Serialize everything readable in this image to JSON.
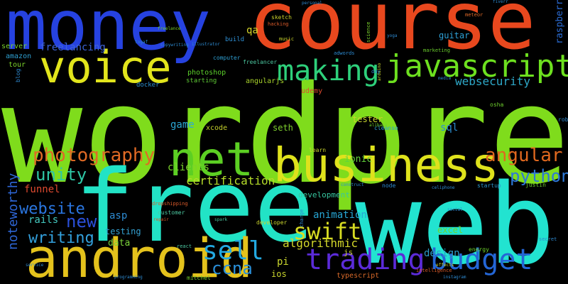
{
  "words": [
    {
      "text": "wordpress",
      "color": "#7fdc1c"
    },
    {
      "text": "web",
      "color": "#22e3d0"
    },
    {
      "text": "free",
      "color": "#22e3c6"
    },
    {
      "text": "money",
      "color": "#2642e0"
    },
    {
      "text": "course",
      "color": "#e8481e"
    },
    {
      "text": "android",
      "color": "#e4c21c"
    },
    {
      "text": "business",
      "color": "#dfe21c"
    },
    {
      "text": "voice",
      "color": "#e2e51c"
    },
    {
      "text": "net",
      "color": "#5ccf23"
    },
    {
      "text": "javascript",
      "color": "#6de01f"
    },
    {
      "text": "making",
      "color": "#2ed07b"
    },
    {
      "text": "trading",
      "color": "#5b2bd8"
    },
    {
      "text": "budget",
      "color": "#2466d6"
    },
    {
      "text": "sell",
      "color": "#23a9e1"
    },
    {
      "text": "swift",
      "color": "#d7db22"
    },
    {
      "text": "photography",
      "color": "#e06a25"
    },
    {
      "text": "angular",
      "color": "#e0681f"
    },
    {
      "text": "unity",
      "color": "#2ec6a5"
    },
    {
      "text": "python",
      "color": "#2d78d8"
    },
    {
      "text": "website",
      "color": "#2a76e0"
    },
    {
      "text": "new",
      "color": "#2a4fd8"
    },
    {
      "text": "writing",
      "color": "#33a0dc"
    },
    {
      "text": "ccna",
      "color": "#2a8fd8"
    },
    {
      "text": "noteworthy",
      "color": "#2e67d8"
    },
    {
      "text": "algorithmic",
      "color": "#d2d62a"
    },
    {
      "text": "certification",
      "color": "#b6dd2a"
    },
    {
      "text": "websecurity",
      "color": "#2ea8c8"
    },
    {
      "text": "clients",
      "color": "#7ad42a"
    },
    {
      "text": "game",
      "color": "#2ba8d6"
    },
    {
      "text": "funnel",
      "color": "#e04a30"
    },
    {
      "text": "rails",
      "color": "#44c9c0"
    },
    {
      "text": "freelancing",
      "color": "#3e64d6"
    },
    {
      "text": "raspberry",
      "color": "#2b6bd2"
    },
    {
      "text": "design",
      "color": "#2b99c6"
    },
    {
      "text": "development",
      "color": "#37c7a0"
    },
    {
      "text": "animation",
      "color": "#27a6d4"
    },
    {
      "text": "tester",
      "color": "#c8d42e"
    },
    {
      "text": "ionic",
      "color": "#63d43b"
    },
    {
      "text": "asp",
      "color": "#2d8bd2"
    },
    {
      "text": "sql",
      "color": "#2c8fd2"
    },
    {
      "text": "testing",
      "color": "#35a2d2"
    },
    {
      "text": "data",
      "color": "#7bd33a"
    },
    {
      "text": "seth",
      "color": "#7fd12e"
    },
    {
      "text": "excel",
      "color": "#6ad72b"
    },
    {
      "text": "guitar",
      "color": "#2ea0d6"
    },
    {
      "text": "qa",
      "color": "#d6d62a"
    },
    {
      "text": "pi",
      "color": "#c8d42e"
    },
    {
      "text": "ios",
      "color": "#c7d32c"
    },
    {
      "text": "js",
      "color": "#c9d42e"
    },
    {
      "text": "photoshop",
      "color": "#5bd02b"
    },
    {
      "text": "angularjs",
      "color": "#a8d22b"
    },
    {
      "text": "xcode",
      "color": "#c4d12b"
    },
    {
      "text": "docker",
      "color": "#2c8dcc"
    },
    {
      "text": "server",
      "color": "#7ad12c"
    },
    {
      "text": "amazon",
      "color": "#2e9fd0"
    },
    {
      "text": "tour",
      "color": "#7cd22c"
    },
    {
      "text": "udemy",
      "color": "#e04a2e"
    },
    {
      "text": "typescript",
      "color": "#d96a2a"
    },
    {
      "text": "starting",
      "color": "#5fcb35"
    },
    {
      "text": "freelancer",
      "color": "#4cc7a0"
    },
    {
      "text": "computer",
      "color": "#2e9ed1"
    },
    {
      "text": "build",
      "color": "#2e8dd1"
    },
    {
      "text": "blog",
      "color": "#2e8ad1"
    },
    {
      "text": "mitchel",
      "color": "#6fcd2d"
    },
    {
      "text": "energy",
      "color": "#6cd22a"
    },
    {
      "text": "startup",
      "color": "#2d96cc"
    },
    {
      "text": "learn",
      "color": "#c9d42e"
    },
    {
      "text": "cleanse",
      "color": "#2ea0d2"
    },
    {
      "text": "rob",
      "color": "#2e8ad1"
    },
    {
      "text": "osha",
      "color": "#6fd02e"
    },
    {
      "text": "science",
      "color": "#7bd12c"
    },
    {
      "text": "sketch",
      "color": "#c9d12c"
    },
    {
      "text": "hacking",
      "color": "#d95a2a"
    },
    {
      "text": "music",
      "color": "#c4d12b"
    },
    {
      "text": "adwords",
      "color": "#2c8bd2"
    },
    {
      "text": "marketing",
      "color": "#6acb2d"
    },
    {
      "text": "meteor",
      "color": "#e06a2a"
    },
    {
      "text": "copywriting",
      "color": "#2e8ad1"
    },
    {
      "text": "freelance",
      "color": "#7ad12c"
    },
    {
      "text": "illustrator",
      "color": "#2e8ad1"
    },
    {
      "text": "togaf",
      "color": "#2e8ad1"
    },
    {
      "text": "fiverr",
      "color": "#2e8ad1"
    },
    {
      "text": "personal",
      "color": "#2e8ad1"
    },
    {
      "text": "yoga",
      "color": "#2e8ad1"
    },
    {
      "text": "node",
      "color": "#2e8ad1"
    },
    {
      "text": "developer",
      "color": "#c9d42e"
    },
    {
      "text": "customer",
      "color": "#4cc7a0"
    },
    {
      "text": "dropshipping",
      "color": "#d95a2a"
    },
    {
      "text": "react",
      "color": "#4cc7a0"
    },
    {
      "text": "programming",
      "color": "#2e8ad1"
    },
    {
      "text": "service",
      "color": "#2e8ad1"
    },
    {
      "text": "secret",
      "color": "#2e8ad1"
    },
    {
      "text": "instagram",
      "color": "#2e8ad1"
    },
    {
      "text": "intelligence",
      "color": "#d95a2a"
    },
    {
      "text": "effects",
      "color": "#c9d42e"
    },
    {
      "text": "alibaba",
      "color": "#6fd02e"
    },
    {
      "text": "arduino",
      "color": "#c9d42e"
    },
    {
      "text": "charge",
      "color": "#2e8ad1"
    },
    {
      "text": "construct",
      "color": "#2e8ad1"
    },
    {
      "text": "celiphone",
      "color": "#2e8ad1"
    },
    {
      "text": "justin",
      "color": "#6fd02e"
    },
    {
      "text": "spark",
      "color": "#4cc7a0"
    },
    {
      "text": "repair",
      "color": "#d95a2a"
    },
    {
      "text": "social",
      "color": "#2e8ad1"
    },
    {
      "text": "media",
      "color": "#2e8ad1"
    },
    {
      "text": "day",
      "color": "#2e8ad1"
    }
  ]
}
